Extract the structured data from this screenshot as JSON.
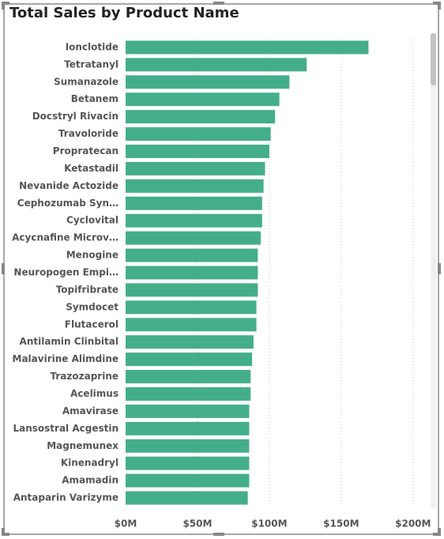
{
  "chart_data": {
    "type": "bar",
    "orientation": "horizontal",
    "title": "Total Sales by Product Name",
    "categories": [
      "Ionclotide",
      "Tetratanyl",
      "Sumanazole",
      "Betanem",
      "Docstryl Rivacin",
      "Travoloride",
      "Propratecan",
      "Ketastadil",
      "Nevanide Actozide",
      "Cephozumab Syn…",
      "Cyclovital",
      "Acycnafine Microv…",
      "Menogine",
      "Neuropogen Empi…",
      "Topifribrate",
      "Symdocet",
      "Flutacerol",
      "Antilamin Clinbital",
      "Malavirine Alimdine",
      "Trazozaprine",
      "Acelimus",
      "Amavirase",
      "Lansostral Acgestin",
      "Magnemunex",
      "Kinenadryl",
      "Amamadin",
      "Antaparin Varizyme"
    ],
    "values": [
      169,
      126,
      114,
      107,
      104,
      101,
      100,
      97,
      96,
      95,
      95,
      94,
      92,
      92,
      92,
      91,
      91,
      89,
      88,
      87,
      87,
      86,
      86,
      86,
      86,
      86,
      85
    ],
    "color": "#44ae8b",
    "xlim": [
      0,
      210
    ],
    "xticks": [
      {
        "value": 0,
        "label": "$0M"
      },
      {
        "value": 50,
        "label": "$50M"
      },
      {
        "value": 100,
        "label": "$100M"
      },
      {
        "value": 150,
        "label": "$150M"
      },
      {
        "value": 200,
        "label": "$200M"
      }
    ],
    "grid": true
  }
}
